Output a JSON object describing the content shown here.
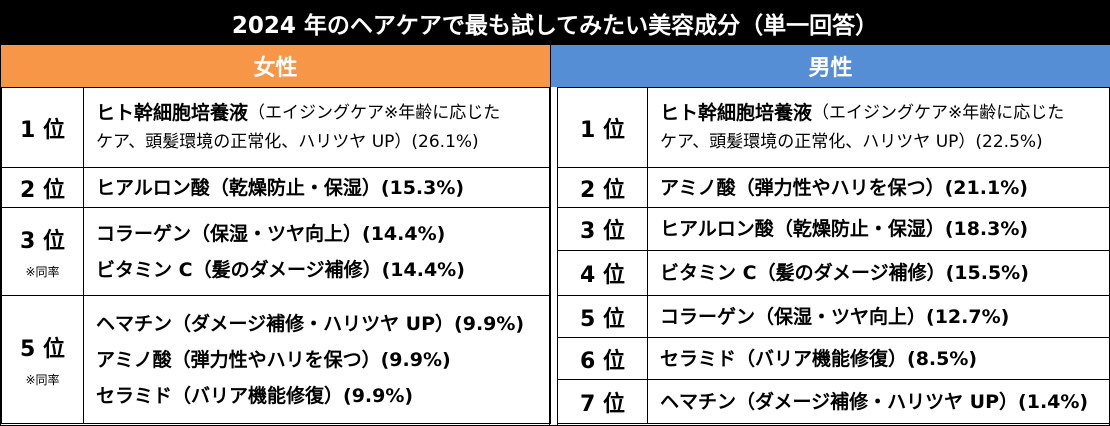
{
  "title": "2024 年のヘアケアで最も試してみたい美容成分（単一回答）",
  "colors": {
    "title_bg": "#000000",
    "female": "#f79646",
    "male": "#558ed5"
  },
  "female": {
    "header": "女性",
    "rows": [
      {
        "rank": "1 位",
        "lines": [
          {
            "name": "ヒト幹細胞培養液",
            "desc": "（エイジングケア※年齢に応じた"
          },
          {
            "name": "",
            "desc": "ケア、頭髪環境の正常化、ハリツヤ UP）(26.1%)"
          }
        ]
      },
      {
        "rank": "2 位",
        "lines": [
          {
            "name": "ヒアルロン酸",
            "desc": "（乾燥防止・保湿）(15.3%)"
          }
        ]
      },
      {
        "rank": "3 位",
        "note": "※同率",
        "lines": [
          {
            "name": "コラーゲン",
            "desc": "（保湿・ツヤ向上）(14.4%)"
          },
          {
            "name": "ビタミン C",
            "desc": "（髪のダメージ補修）(14.4%)"
          }
        ]
      },
      {
        "rank": "5 位",
        "note": "※同率",
        "lines": [
          {
            "name": "ヘマチン",
            "desc": "（ダメージ補修・ハリツヤ UP）(9.9%)"
          },
          {
            "name": "アミノ酸",
            "desc": "（弾力性やハリを保つ）(9.9%)"
          },
          {
            "name": "セラミド",
            "desc": "（バリア機能修復）(9.9%)"
          }
        ]
      }
    ]
  },
  "male": {
    "header": "男性",
    "rows": [
      {
        "rank": "1 位",
        "lines": [
          {
            "name": "ヒト幹細胞培養液",
            "desc": "（エイジングケア※年齢に応じた"
          },
          {
            "name": "",
            "desc": "ケア、頭髪環境の正常化、ハリツヤ UP）(22.5%)"
          }
        ]
      },
      {
        "rank": "2 位",
        "lines": [
          {
            "name": "アミノ酸",
            "desc": "（弾力性やハリを保つ）(21.1%)"
          }
        ]
      },
      {
        "rank": "3 位",
        "lines": [
          {
            "name": "ヒアルロン酸",
            "desc": "（乾燥防止・保湿）(18.3%)"
          }
        ]
      },
      {
        "rank": "4 位",
        "lines": [
          {
            "name": "ビタミン C",
            "desc": "（髪のダメージ補修）(15.5%)"
          }
        ]
      },
      {
        "rank": "5 位",
        "lines": [
          {
            "name": "コラーゲン",
            "desc": "（保湿・ツヤ向上）(12.7%)"
          }
        ]
      },
      {
        "rank": "6 位",
        "lines": [
          {
            "name": "セラミド",
            "desc": "（バリア機能修復）(8.5%)"
          }
        ]
      },
      {
        "rank": "7 位",
        "lines": [
          {
            "name": "ヘマチン",
            "desc": "（ダメージ補修・ハリツヤ UP）(1.4%)"
          }
        ]
      }
    ]
  }
}
